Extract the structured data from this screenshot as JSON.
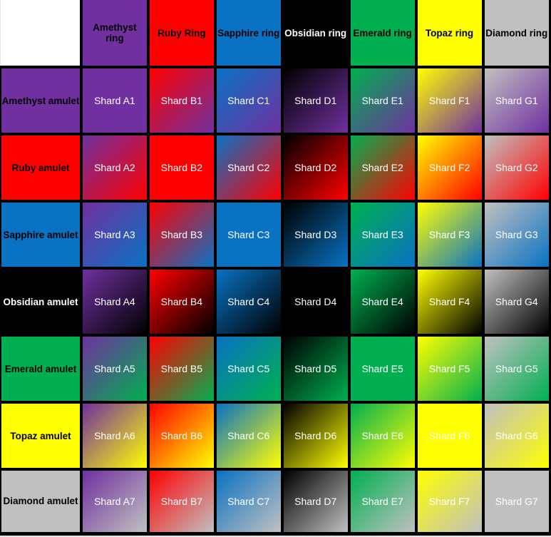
{
  "table": {
    "corner_label": "",
    "corner_color": "#FFFFFF",
    "grid_line_color": "#000000",
    "page_background": "#E6E6E6",
    "cell_text_color": "#FFFFFF",
    "gradient_direction": "135deg",
    "rings": [
      {
        "id": "A",
        "label": "Amethyst ring",
        "color": "#7030A0",
        "text_color": "#000000"
      },
      {
        "id": "B",
        "label": "Ruby Ring",
        "color": "#FF0000",
        "text_color": "#000000"
      },
      {
        "id": "C",
        "label": "Sapphire ring",
        "color": "#0972C3",
        "text_color": "#000000"
      },
      {
        "id": "D",
        "label": "Obsidian ring",
        "color": "#000000",
        "text_color": "#FFFFFF"
      },
      {
        "id": "E",
        "label": "Emerald ring",
        "color": "#00B050",
        "text_color": "#000000"
      },
      {
        "id": "F",
        "label": "Topaz ring",
        "color": "#FFFF00",
        "text_color": "#000000"
      },
      {
        "id": "G",
        "label": "Diamond ring",
        "color": "#C0C0C0",
        "text_color": "#000000"
      }
    ],
    "amulets": [
      {
        "id": "1",
        "label": "Amethyst amulet",
        "color": "#7030A0",
        "text_color": "#000000"
      },
      {
        "id": "2",
        "label": "Ruby amulet",
        "color": "#FF0000",
        "text_color": "#000000"
      },
      {
        "id": "3",
        "label": "Sapphire amulet",
        "color": "#0972C3",
        "text_color": "#000000"
      },
      {
        "id": "4",
        "label": "Obsidian amulet",
        "color": "#000000",
        "text_color": "#FFFFFF"
      },
      {
        "id": "5",
        "label": "Emerald amulet",
        "color": "#00B050",
        "text_color": "#000000"
      },
      {
        "id": "6",
        "label": "Topaz amulet",
        "color": "#FFFF00",
        "text_color": "#000000"
      },
      {
        "id": "7",
        "label": "Diamond amulet",
        "color": "#C0C0C0",
        "text_color": "#000000"
      }
    ],
    "cells": [
      [
        "Shard A1",
        "Shard B1",
        "Shard C1",
        "Shard D1",
        "Shard E1",
        "Shard F1",
        "Shard G1"
      ],
      [
        "Shard A2",
        "Shard B2",
        "Shard C2",
        "Shard D2",
        "Shard E2",
        "Shard F2",
        "Shard G2"
      ],
      [
        "Shard A3",
        "Shard B3",
        "Shard C3",
        "Shard D3",
        "Shard E3",
        "Shard F3",
        "Shard G3"
      ],
      [
        "Shard A4",
        "Shard B4",
        "Shard C4",
        "Shard D4",
        "Shard E4",
        "Shard F4",
        "Shard G4"
      ],
      [
        "Shard A5",
        "Shard B5",
        "Shard C5",
        "Shard D5",
        "Shard E5",
        "Shard F5",
        "Shard G5"
      ],
      [
        "Shard A6",
        "Shard B6",
        "Shard C6",
        "Shard D6",
        "Shard E6",
        "Shard F6",
        "Shard G6"
      ],
      [
        "Shard A7",
        "Shard B7",
        "Shard C7",
        "Shard D7",
        "Shard E7",
        "Shard F7",
        "Shard G7"
      ]
    ]
  }
}
